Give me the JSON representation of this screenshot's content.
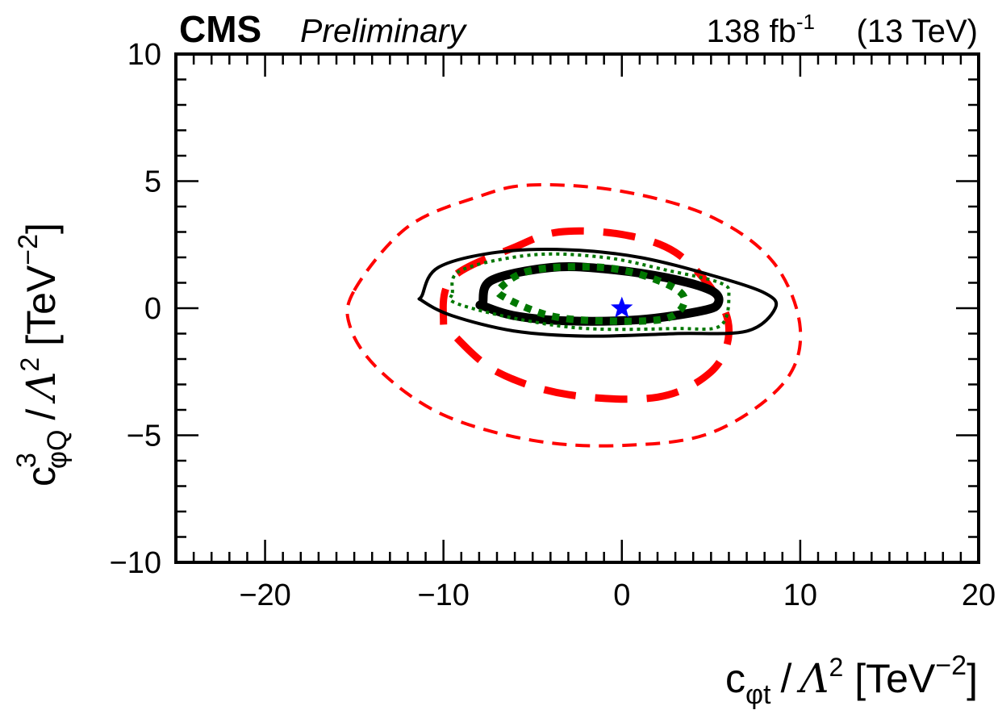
{
  "header": {
    "experiment": "CMS",
    "status": "Preliminary",
    "lumi_value": "138 fb",
    "lumi_exp": "-1",
    "energy": "(13 TeV)"
  },
  "axes": {
    "x": {
      "c": "c",
      "sub": "φt",
      "slash": "/",
      "lambda": "Λ",
      "lambda_exp": "2",
      "unit": "[TeV",
      "unit_exp": "−2",
      "close": "]"
    },
    "y": {
      "c": "c",
      "sup": "3",
      "sub": "φQ",
      "slash": "/",
      "lambda": "Λ",
      "lambda_exp": "2",
      "unit": "[TeV",
      "unit_exp": "−2",
      "close": "]"
    }
  },
  "chart_data": {
    "type": "contour",
    "xlim": [
      -25,
      20
    ],
    "ylim": [
      -10,
      10
    ],
    "x_ticks": [
      -20,
      -10,
      0,
      10,
      20
    ],
    "y_ticks": [
      -10,
      -5,
      0,
      5,
      10
    ],
    "x_tick_labels": [
      "−20",
      "−10",
      "0",
      "10",
      "20"
    ],
    "y_tick_labels": [
      "−10",
      "−5",
      "0",
      "5",
      "10"
    ],
    "grid": false,
    "best_fit": {
      "x": 0.0,
      "y": 0.0,
      "marker": "star",
      "color": "#0000ff"
    },
    "contours": [
      {
        "id": "red-dashed-outer",
        "color": "#ff0000",
        "style": "dashed",
        "weight": "thin",
        "points": [
          [
            -15.0,
            0.7
          ],
          [
            -12.0,
            3.2
          ],
          [
            -8.0,
            4.4
          ],
          [
            -5.0,
            4.85
          ],
          [
            0.0,
            4.6
          ],
          [
            5.0,
            3.6
          ],
          [
            8.5,
            1.8
          ],
          [
            10.0,
            -0.8
          ],
          [
            9.0,
            -3.0
          ],
          [
            5.0,
            -4.9
          ],
          [
            0.0,
            -5.4
          ],
          [
            -5.0,
            -5.2
          ],
          [
            -10.0,
            -4.2
          ],
          [
            -13.5,
            -2.5
          ],
          [
            -15.2,
            -0.8
          ]
        ]
      },
      {
        "id": "red-dashed-inner",
        "color": "#ff0000",
        "style": "dashed",
        "weight": "thick",
        "points": [
          [
            -10.0,
            -0.5
          ],
          [
            -9.5,
            1.2
          ],
          [
            -6.0,
            2.4
          ],
          [
            -3.5,
            3.0
          ],
          [
            0.0,
            2.9
          ],
          [
            3.0,
            2.2
          ],
          [
            5.3,
            0.5
          ],
          [
            6.0,
            -1.0
          ],
          [
            5.0,
            -2.5
          ],
          [
            2.0,
            -3.5
          ],
          [
            -3.0,
            -3.4
          ],
          [
            -7.0,
            -2.5
          ],
          [
            -9.5,
            -1.0
          ]
        ]
      },
      {
        "id": "black-solid-outer",
        "color": "#000000",
        "style": "solid",
        "weight": "thin",
        "points": [
          [
            -11.2,
            0.5
          ],
          [
            -10.3,
            1.6
          ],
          [
            -7.0,
            2.2
          ],
          [
            -3.0,
            2.3
          ],
          [
            1.0,
            2.0
          ],
          [
            5.0,
            1.3
          ],
          [
            8.0,
            0.6
          ],
          [
            8.6,
            0.0
          ],
          [
            7.0,
            -0.9
          ],
          [
            3.0,
            -1.0
          ],
          [
            -2.0,
            -1.1
          ],
          [
            -6.0,
            -0.9
          ],
          [
            -9.5,
            -0.3
          ],
          [
            -11.2,
            0.3
          ]
        ]
      },
      {
        "id": "black-solid-inner",
        "color": "#000000",
        "style": "solid",
        "weight": "thick",
        "points": [
          [
            -7.8,
            0.2
          ],
          [
            -7.3,
            1.1
          ],
          [
            -4.0,
            1.6
          ],
          [
            -1.0,
            1.55
          ],
          [
            2.5,
            1.2
          ],
          [
            5.0,
            0.7
          ],
          [
            5.4,
            0.2
          ],
          [
            4.5,
            -0.1
          ],
          [
            1.0,
            -0.45
          ],
          [
            -3.0,
            -0.5
          ],
          [
            -6.0,
            -0.3
          ],
          [
            -7.8,
            0.1
          ]
        ]
      },
      {
        "id": "green-dotted-outer",
        "color": "#007700",
        "style": "dotted",
        "weight": "thin",
        "points": [
          [
            -9.5,
            0.6
          ],
          [
            -9.0,
            1.5
          ],
          [
            -5.0,
            2.1
          ],
          [
            -1.0,
            2.0
          ],
          [
            2.5,
            1.5
          ],
          [
            5.5,
            1.0
          ],
          [
            6.0,
            0.5
          ],
          [
            5.5,
            -0.7
          ],
          [
            3.0,
            -0.8
          ],
          [
            -2.0,
            -0.8
          ],
          [
            -6.0,
            -0.4
          ],
          [
            -9.3,
            0.2
          ]
        ]
      },
      {
        "id": "green-dotted-inner",
        "color": "#007700",
        "style": "dotted",
        "weight": "thick",
        "points": [
          [
            -6.8,
            0.8
          ],
          [
            -5.0,
            1.5
          ],
          [
            -1.0,
            1.6
          ],
          [
            2.0,
            1.1
          ],
          [
            3.5,
            0.4
          ],
          [
            2.5,
            -0.4
          ],
          [
            -1.0,
            -0.5
          ],
          [
            -4.0,
            -0.3
          ],
          [
            -6.5,
            0.4
          ]
        ]
      }
    ]
  }
}
